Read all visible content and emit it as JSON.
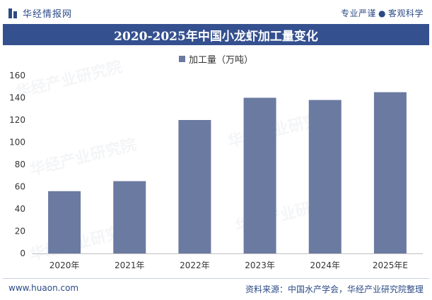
{
  "header": {
    "brand": "华经情报网",
    "tagline_left": "专业严谨",
    "tagline_sep": "●",
    "tagline_right": "客观科学"
  },
  "legend_label": "加工量（万吨）",
  "footer": {
    "website": "www.huaon.com",
    "source": "资料来源：中国水产学会，华经产业研究院整理"
  },
  "colors": {
    "bar": "#6b7aa1",
    "title_bg": "#34508f",
    "brand": "#2b4a86"
  },
  "chart_data": {
    "type": "bar",
    "title": "2020-2025年中国小龙虾加工量变化",
    "categories": [
      "2020年",
      "2021年",
      "2022年",
      "2023年",
      "2024年",
      "2025年E"
    ],
    "series": [
      {
        "name": "加工量（万吨）",
        "values": [
          56,
          65,
          120,
          140,
          138,
          145
        ]
      }
    ],
    "xlabel": "",
    "ylabel": "",
    "ylim": [
      0,
      160
    ],
    "yticks": [
      0,
      20,
      40,
      60,
      80,
      100,
      120,
      140,
      160
    ],
    "grid": false,
    "legend_position": "top-center"
  }
}
